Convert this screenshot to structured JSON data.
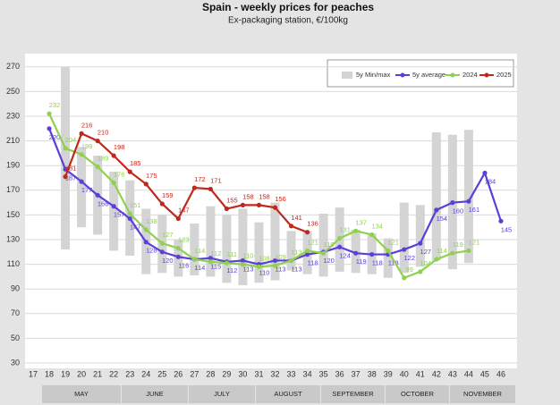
{
  "chart_data": {
    "type": "line",
    "title": "Spain - weekly prices for peaches",
    "subtitle": "Ex-packaging station, €/100kg",
    "x": [
      17,
      18,
      19,
      20,
      21,
      22,
      23,
      24,
      25,
      26,
      27,
      28,
      29,
      30,
      31,
      32,
      33,
      34,
      35,
      36,
      37,
      38,
      39,
      40,
      41,
      42,
      43,
      44,
      45,
      46
    ],
    "xlim": [
      16.5,
      47
    ],
    "xticks": [
      17,
      18,
      19,
      20,
      21,
      22,
      23,
      24,
      25,
      26,
      27,
      28,
      29,
      30,
      31,
      32,
      33,
      34,
      35,
      36,
      37,
      38,
      39,
      40,
      41,
      42,
      43,
      44,
      45,
      46
    ],
    "ylim": [
      30,
      280
    ],
    "yticks": [
      30,
      50,
      70,
      90,
      110,
      130,
      150,
      170,
      190,
      210,
      230,
      250,
      270
    ],
    "grid": true,
    "legend": "top-right",
    "months": [
      "MAY",
      "JUNE",
      "JULY",
      "AUGUST",
      "SEPTEMBER",
      "OCTOBER",
      "NOVEMBER"
    ],
    "range": {
      "name": "5y Min/max",
      "color": "#d4d4d4",
      "low": [
        null,
        null,
        122,
        140,
        134,
        121,
        117,
        102,
        103,
        100,
        101,
        100,
        95,
        93,
        95,
        97,
        105,
        102,
        100,
        104,
        103,
        102,
        99,
        103,
        108,
        113,
        106,
        111,
        null,
        null
      ],
      "high": [
        null,
        null,
        270,
        205,
        198,
        185,
        178,
        155,
        150,
        130,
        143,
        157,
        150,
        155,
        144,
        160,
        137,
        137,
        151,
        156,
        138,
        135,
        131,
        160,
        158,
        217,
        215,
        219,
        null,
        null
      ]
    },
    "series": [
      {
        "name": "5y average",
        "color": "#5b3fd9",
        "values": [
          null,
          220,
          187,
          177,
          166,
          157,
          147,
          128,
          120,
          116,
          114,
          115,
          112,
          113,
          110,
          113,
          113,
          118,
          120,
          124,
          119,
          118,
          118,
          122,
          127,
          154,
          160,
          161,
          184,
          145
        ]
      },
      {
        "name": "2024",
        "color": "#8fd14f",
        "values": [
          null,
          232,
          204,
          199,
          189,
          176,
          151,
          138,
          127,
          123,
          114,
          112,
          111,
          110,
          108,
          109,
          113,
          121,
          119,
          131,
          137,
          134,
          121,
          99,
          104,
          114,
          119,
          121,
          null,
          null
        ]
      },
      {
        "name": "2025",
        "color": "#c0281c",
        "values": [
          null,
          null,
          181,
          216,
          210,
          198,
          185,
          175,
          159,
          147,
          172,
          171,
          155,
          158,
          158,
          156,
          141,
          136,
          null,
          null,
          null,
          null,
          null,
          null,
          null,
          null,
          null,
          null,
          null,
          null
        ]
      }
    ]
  }
}
